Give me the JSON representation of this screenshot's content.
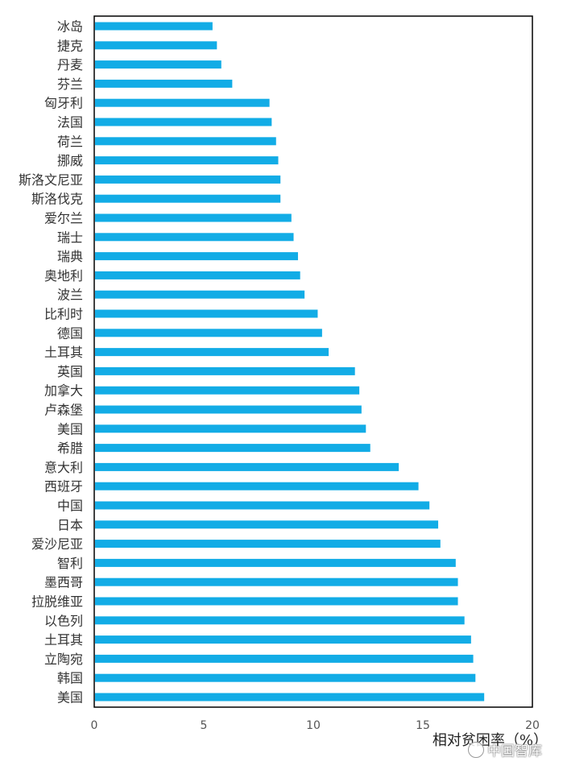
{
  "chart_data": {
    "type": "bar",
    "orientation": "horizontal",
    "categories": [
      "冰岛",
      "捷克",
      "丹麦",
      "芬兰",
      "匈牙利",
      "法国",
      "荷兰",
      "挪威",
      "斯洛文尼亚",
      "斯洛伐克",
      "爱尔兰",
      "瑞士",
      "瑞典",
      "奥地利",
      "波兰",
      "比利时",
      "德国",
      "土耳其",
      "英国",
      "加拿大",
      "卢森堡",
      "美国",
      "希腊",
      "意大利",
      "西班牙",
      "中国",
      "日本",
      "爱沙尼亚",
      "智利",
      "墨西哥",
      "拉脱维亚",
      "以色列",
      "土耳其",
      "立陶宛",
      "韩国",
      "美国"
    ],
    "values": [
      5.4,
      5.6,
      5.8,
      6.3,
      8.0,
      8.1,
      8.3,
      8.4,
      8.5,
      8.5,
      9.0,
      9.1,
      9.3,
      9.4,
      9.6,
      10.2,
      10.4,
      10.7,
      11.9,
      12.1,
      12.2,
      12.4,
      12.6,
      13.9,
      14.8,
      15.3,
      15.7,
      15.8,
      16.5,
      16.6,
      16.6,
      16.9,
      17.2,
      17.3,
      17.4,
      17.8
    ],
    "xlabel": "相对贫困率（%）",
    "xlim": [
      0,
      20
    ],
    "xticks": [
      "0",
      "5",
      "10",
      "15",
      "20"
    ],
    "grid": false,
    "bar_color": "#12ACE6"
  },
  "watermark": {
    "text": "中国智库",
    "icon": "wechat-icon"
  }
}
